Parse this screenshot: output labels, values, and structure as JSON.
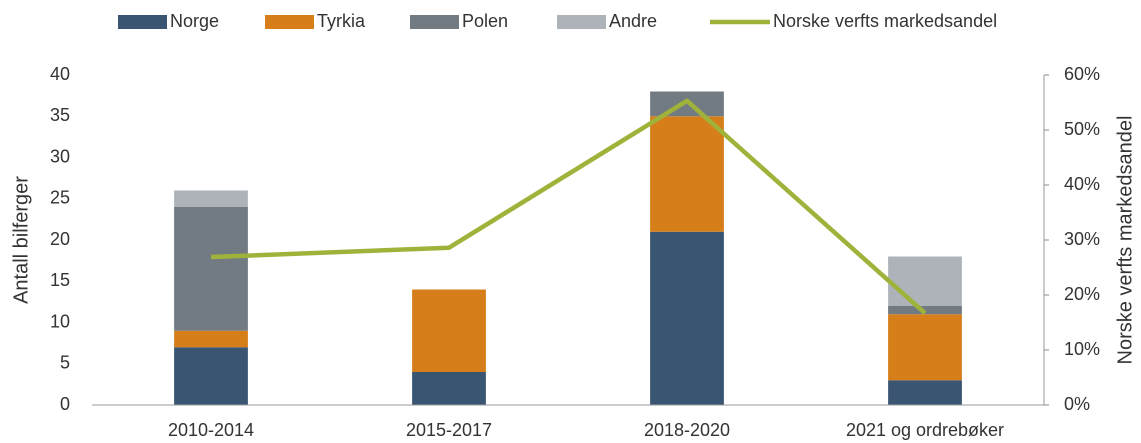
{
  "chart_data": {
    "type": "bar",
    "stacked": true,
    "categories": [
      "2010-2014",
      "2015-2017",
      "2018-2020",
      "2021 og ordrebøker"
    ],
    "series": [
      {
        "name": "Norge",
        "color": "#3a5572",
        "values": [
          7,
          4,
          21,
          3
        ]
      },
      {
        "name": "Tyrkia",
        "color": "#d67f1a",
        "values": [
          2,
          10,
          14,
          8
        ]
      },
      {
        "name": "Polen",
        "color": "#737b82",
        "values": [
          15,
          0,
          3,
          1
        ]
      },
      {
        "name": "Andre",
        "color": "#adb3b8",
        "values": [
          2,
          0,
          0,
          6
        ]
      },
      {
        "name": "Norske verfts markedsandel",
        "color": "#9fb33a",
        "type": "line",
        "axis": "y2",
        "values": [
          26.9,
          28.6,
          55.3,
          16.7
        ]
      }
    ],
    "ylabel": "Antall bilferger",
    "y2label": "Norske verfts markedsandel",
    "ylim": [
      0,
      40
    ],
    "yticks": [
      0,
      5,
      10,
      15,
      20,
      25,
      30,
      35,
      40
    ],
    "y2lim": [
      0,
      60
    ],
    "y2ticks": [
      {
        "value": 0,
        "label": "0%"
      },
      {
        "value": 10,
        "label": "10%"
      },
      {
        "value": 20,
        "label": "20%"
      },
      {
        "value": 30,
        "label": "30%"
      },
      {
        "value": 40,
        "label": "40%"
      },
      {
        "value": 50,
        "label": "50%"
      },
      {
        "value": 60,
        "label": "60%"
      }
    ],
    "legend": "top",
    "grid": false
  }
}
